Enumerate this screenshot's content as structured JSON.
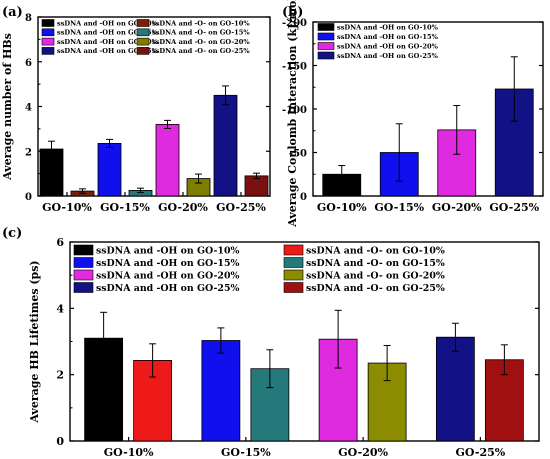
{
  "figure": {
    "panels": [
      "(a)",
      "(b)",
      "(c)"
    ]
  },
  "chart_data": [
    {
      "type": "bar",
      "panel": "(a)",
      "categories": [
        "GO-10%",
        "GO-15%",
        "GO-20%",
        "GO-25%"
      ],
      "ylabel": "Average number of HBs",
      "xlabel": "",
      "ylim": [
        0,
        8
      ],
      "yticks": [
        0,
        2,
        4,
        6,
        8
      ],
      "legend_position": "top",
      "series": [
        {
          "name": "ssDNA and -OH on GO-10%",
          "color": "#000000",
          "values": [
            2.1,
            null,
            null,
            null
          ],
          "errors": [
            0.35,
            null,
            null,
            null
          ]
        },
        {
          "name": "ssDNA and -O- on GO-10%",
          "color": "#7b1e0c",
          "values": [
            0.22,
            null,
            null,
            null
          ],
          "errors": [
            0.1,
            null,
            null,
            null
          ]
        },
        {
          "name": "ssDNA and -OH on GO-15%",
          "color": "#1010ee",
          "values": [
            null,
            2.35,
            null,
            null
          ],
          "errors": [
            null,
            0.18,
            null,
            null
          ]
        },
        {
          "name": "ssDNA and -O- on GO-15%",
          "color": "#26797a",
          "values": [
            null,
            0.25,
            null,
            null
          ],
          "errors": [
            null,
            0.1,
            null,
            null
          ]
        },
        {
          "name": "ssDNA and -OH on GO-20%",
          "color": "#e02ae0",
          "values": [
            null,
            null,
            3.2,
            null
          ],
          "errors": [
            null,
            null,
            0.18,
            null
          ]
        },
        {
          "name": "ssDNA and -O- on GO-20%",
          "color": "#7d7d00",
          "values": [
            null,
            null,
            0.78,
            null
          ],
          "errors": [
            null,
            null,
            0.2,
            null
          ]
        },
        {
          "name": "ssDNA and -OH on GO-25%",
          "color": "#121286",
          "values": [
            null,
            null,
            null,
            4.5
          ],
          "errors": [
            null,
            null,
            null,
            0.42
          ]
        },
        {
          "name": "ssDNA and -O- on GO-25%",
          "color": "#7a1111",
          "values": [
            null,
            null,
            null,
            0.9
          ],
          "errors": [
            null,
            null,
            null,
            0.12
          ]
        }
      ]
    },
    {
      "type": "bar",
      "panel": "(b)",
      "categories": [
        "GO-10%",
        "GO-15%",
        "GO-20%",
        "GO-25%"
      ],
      "ylabel": "Average Coulomb Interaction (kJ/mol)",
      "xlabel": "",
      "ylim": [
        0,
        -200
      ],
      "yticks": [
        0,
        -50,
        -100,
        -150,
        -200
      ],
      "legend_position": "top-left",
      "series": [
        {
          "name": "ssDNA and -OH on GO-10%",
          "color": "#000000",
          "values": [
            -25,
            null,
            null,
            null
          ],
          "errors": [
            10,
            null,
            null,
            null
          ]
        },
        {
          "name": "ssDNA and -OH on GO-15%",
          "color": "#1010ee",
          "values": [
            null,
            -50,
            null,
            null
          ],
          "errors": [
            null,
            33,
            null,
            null
          ]
        },
        {
          "name": "ssDNA and -OH on GO-20%",
          "color": "#e02ae0",
          "values": [
            null,
            null,
            -76,
            null
          ],
          "errors": [
            null,
            null,
            28,
            null
          ]
        },
        {
          "name": "ssDNA and -OH on GO-25%",
          "color": "#121286",
          "values": [
            null,
            null,
            null,
            -123
          ],
          "errors": [
            null,
            null,
            null,
            37
          ]
        }
      ]
    },
    {
      "type": "bar",
      "panel": "(c)",
      "categories": [
        "GO-10%",
        "GO-15%",
        "GO-20%",
        "GO-25%"
      ],
      "ylabel": "Average HB Lifetimes (ps)",
      "xlabel": "",
      "ylim": [
        0,
        6
      ],
      "yticks": [
        0,
        2,
        4,
        6
      ],
      "legend_position": "top",
      "series": [
        {
          "name": "ssDNA and -OH on GO-10%",
          "color": "#000000",
          "values": [
            3.1,
            null,
            null,
            null
          ],
          "errors": [
            0.78,
            null,
            null,
            null
          ]
        },
        {
          "name": "ssDNA and -O- on GO-10%",
          "color": "#ee1a1a",
          "values": [
            2.43,
            null,
            null,
            null
          ],
          "errors": [
            0.5,
            null,
            null,
            null
          ]
        },
        {
          "name": "ssDNA and -OH on GO-15%",
          "color": "#1010ee",
          "values": [
            null,
            3.03,
            null,
            null
          ],
          "errors": [
            null,
            0.38,
            null,
            null
          ]
        },
        {
          "name": "ssDNA and -O- on GO-15%",
          "color": "#26797a",
          "values": [
            null,
            2.18,
            null,
            null
          ],
          "errors": [
            null,
            0.57,
            null,
            null
          ]
        },
        {
          "name": "ssDNA and -OH on GO-20%",
          "color": "#e02ae0",
          "values": [
            null,
            null,
            3.07,
            null
          ],
          "errors": [
            null,
            null,
            0.87,
            null
          ]
        },
        {
          "name": "ssDNA and -O- on GO-20%",
          "color": "#8c8c00",
          "values": [
            null,
            null,
            2.35,
            null
          ],
          "errors": [
            null,
            null,
            0.53,
            null
          ]
        },
        {
          "name": "ssDNA and -OH on GO-25%",
          "color": "#121286",
          "values": [
            null,
            null,
            null,
            3.13
          ],
          "errors": [
            null,
            null,
            null,
            0.42
          ]
        },
        {
          "name": "ssDNA and -O- on GO-25%",
          "color": "#a01010",
          "values": [
            null,
            null,
            null,
            2.45
          ],
          "errors": [
            null,
            null,
            null,
            0.45
          ]
        }
      ]
    }
  ]
}
